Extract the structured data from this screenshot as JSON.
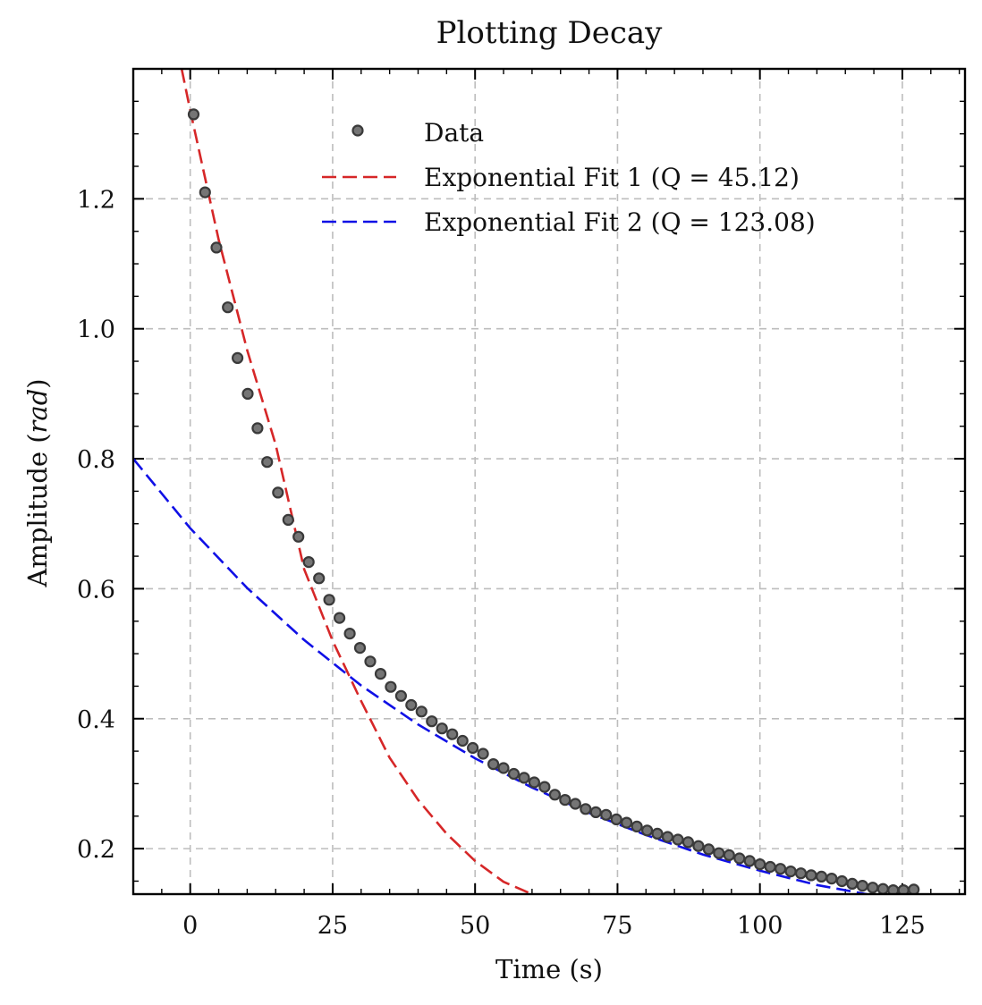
{
  "chart_data": {
    "type": "scatter",
    "title": "Plotting Decay",
    "xlabel": "Time (s)",
    "ylabel_text": "Amplitude (",
    "ylabel_unit": "rad",
    "ylabel_close": ")",
    "xlim": [
      -10,
      136
    ],
    "ylim": [
      0.13,
      1.4
    ],
    "x_ticks": [
      0,
      25,
      50,
      75,
      100,
      125
    ],
    "y_ticks": [
      0.2,
      0.4,
      0.6,
      0.8,
      1.0,
      1.2
    ],
    "x_tick_labels": [
      "0",
      "25",
      "50",
      "75",
      "100",
      "125"
    ],
    "y_tick_labels": [
      "0.2",
      "0.4",
      "0.6",
      "0.8",
      "1.0",
      "1.2"
    ],
    "grid": true,
    "legend_position": "top-right",
    "legend": [
      {
        "label": "Data",
        "marker": "circle",
        "color": "#757575"
      },
      {
        "label": "Exponential Fit 1 (Q = 45.12)",
        "style": "dashed",
        "color": "#d62728"
      },
      {
        "label": "Exponential Fit 2 (Q = 123.08)",
        "style": "dashed",
        "color": "#1010e6"
      }
    ],
    "series": [
      {
        "name": "Data",
        "kind": "points",
        "color": "#757575",
        "x": [
          0.6,
          2.6,
          4.6,
          6.6,
          8.3,
          10.1,
          11.8,
          13.5,
          15.4,
          17.2,
          19.0,
          20.8,
          22.6,
          24.4,
          26.2,
          28.0,
          29.8,
          31.6,
          33.4,
          35.2,
          37.0,
          38.8,
          40.6,
          42.4,
          44.2,
          46.0,
          47.8,
          49.6,
          51.4,
          53.2,
          55.0,
          56.8,
          58.6,
          60.4,
          62.2,
          64.0,
          65.8,
          67.6,
          69.4,
          71.2,
          73.0,
          74.8,
          76.6,
          78.4,
          80.2,
          82.0,
          83.8,
          85.6,
          87.4,
          89.2,
          91.0,
          92.8,
          94.6,
          96.4,
          98.2,
          100.0,
          101.8,
          103.6,
          105.4,
          107.2,
          109.0,
          110.8,
          112.6,
          114.4,
          116.2,
          118.0,
          119.8,
          121.6,
          123.4,
          125.2,
          127.0
        ],
        "y": [
          1.33,
          1.21,
          1.125,
          1.033,
          0.955,
          0.9,
          0.847,
          0.795,
          0.748,
          0.706,
          0.68,
          0.641,
          0.616,
          0.583,
          0.555,
          0.531,
          0.509,
          0.488,
          0.469,
          0.449,
          0.435,
          0.421,
          0.411,
          0.396,
          0.385,
          0.376,
          0.366,
          0.355,
          0.346,
          0.33,
          0.324,
          0.315,
          0.309,
          0.302,
          0.295,
          0.283,
          0.275,
          0.269,
          0.261,
          0.256,
          0.252,
          0.245,
          0.24,
          0.234,
          0.228,
          0.223,
          0.218,
          0.214,
          0.21,
          0.204,
          0.199,
          0.193,
          0.19,
          0.185,
          0.181,
          0.176,
          0.172,
          0.169,
          0.165,
          0.162,
          0.159,
          0.157,
          0.154,
          0.15,
          0.146,
          0.143,
          0.14,
          0.138,
          0.136,
          0.136,
          0.137
        ]
      },
      {
        "name": "Exponential Fit 1 (Q = 45.12)",
        "kind": "line",
        "color": "#d62728",
        "x": [
          -1.5,
          0,
          5,
          10,
          15,
          20,
          25,
          30,
          35,
          40,
          45,
          50,
          55,
          61
        ],
        "y": [
          1.4,
          1.336,
          1.137,
          0.967,
          0.822,
          0.63,
          0.52,
          0.427,
          0.34,
          0.275,
          0.223,
          0.181,
          0.149,
          0.126
        ]
      },
      {
        "name": "Exponential Fit 2 (Q = 123.08)",
        "kind": "line",
        "color": "#1010e6",
        "x": [
          -10,
          0,
          10,
          20,
          30,
          40,
          50,
          60,
          70,
          80,
          90,
          100,
          110,
          120
        ],
        "y": [
          0.8,
          0.693,
          0.601,
          0.521,
          0.451,
          0.391,
          0.339,
          0.294,
          0.255,
          0.221,
          0.191,
          0.166,
          0.144,
          0.128
        ]
      }
    ]
  }
}
